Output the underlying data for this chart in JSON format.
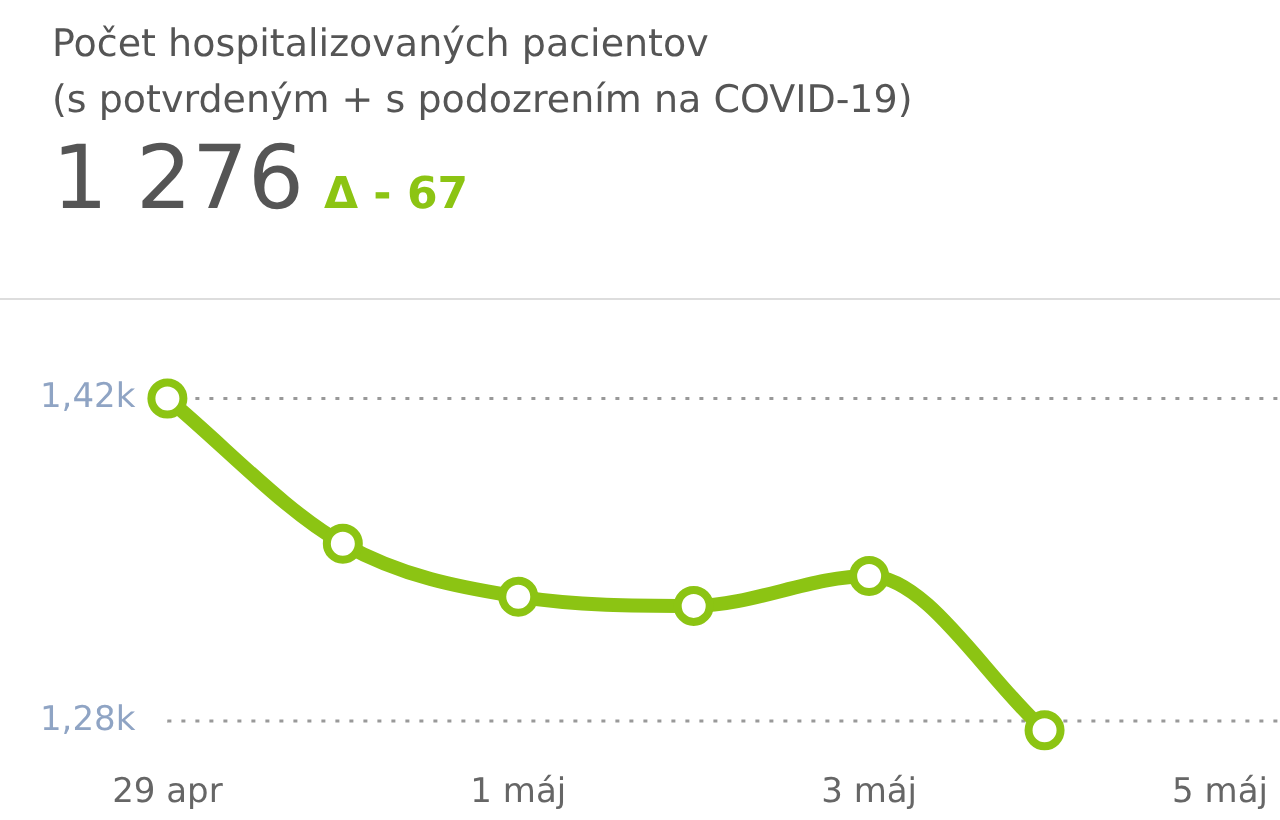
{
  "chart_data": {
    "type": "line",
    "title": "Počet hospitalizovaných pacientov",
    "subtitle": "(s potvrdeným + s podozrením na COVID-19)",
    "annotations": [
      "1 276",
      "Δ - 67"
    ],
    "x": [
      "--04-29",
      "--04-30",
      "--05-01",
      "--05-02",
      "--05-03",
      "--05-04"
    ],
    "series": [
      {
        "color": "#8cc413",
        "values": [
          1420,
          1357,
          1334,
          1330,
          1343,
          1276
        ]
      }
    ],
    "xlim": [
      "--04-29",
      "--05-05"
    ],
    "xticks": [
      {
        "value": "--04-29",
        "label": "29 apr"
      },
      {
        "value": "--05-01",
        "label": "1 máj"
      },
      {
        "value": "--05-03",
        "label": "3 máj"
      },
      {
        "value": "--05-05",
        "label": "5 máj"
      }
    ],
    "ylim": [
      1260,
      1440
    ],
    "yticks": [
      {
        "value": 1280,
        "label": "1,28k"
      },
      {
        "value": 1420,
        "label": "1,42k"
      }
    ],
    "grid": "y",
    "marker": "circle",
    "line_style": "solid",
    "legend": false
  }
}
